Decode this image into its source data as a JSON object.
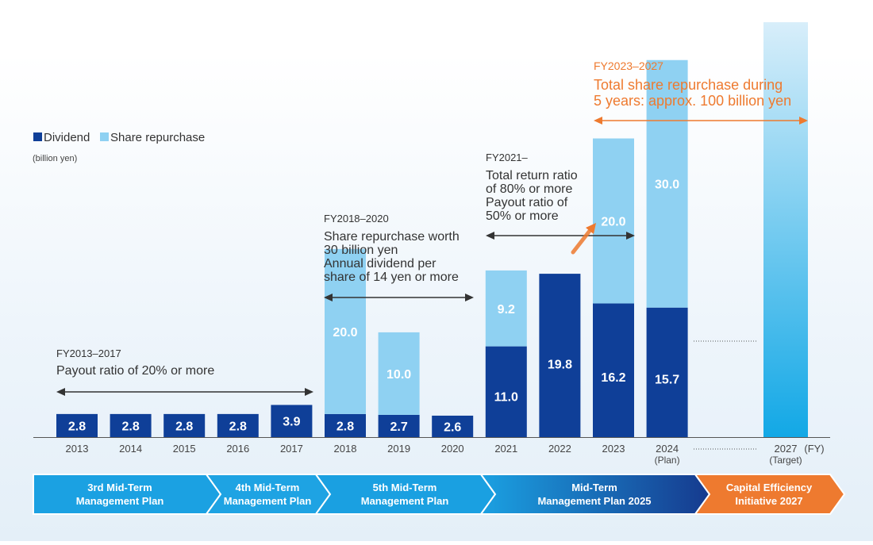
{
  "colors": {
    "dividend": "#0f3f98",
    "repurchase": "#8fd1f2",
    "target_top": "#d8eefa",
    "target_bottom": "#12a8e6",
    "annotation_dark": "#333333",
    "annotation_orange": "#ee7a2f",
    "plan_blue_light": "#1ba1e2",
    "plan_blue_dark": "#163a8e",
    "plan_orange": "#ee7a2f"
  },
  "legend": {
    "dividend": "Dividend",
    "repurchase": "Share repurchase",
    "unit": "(billion yen)"
  },
  "fy_unit": "(FY)",
  "chart_data": {
    "type": "bar",
    "stacked": true,
    "categories": [
      "2013",
      "2014",
      "2015",
      "2016",
      "2017",
      "2018",
      "2019",
      "2020",
      "2021",
      "2022",
      "2023",
      "2024",
      "2027"
    ],
    "category_sublabels": [
      "",
      "",
      "",
      "",
      "",
      "",
      "",
      "",
      "",
      "",
      "",
      "(Plan)",
      "(Target)"
    ],
    "series": [
      {
        "name": "Dividend",
        "values": [
          2.8,
          2.8,
          2.8,
          2.8,
          3.9,
          2.8,
          2.7,
          2.6,
          11.0,
          19.8,
          16.2,
          15.7,
          null
        ]
      },
      {
        "name": "Share repurchase",
        "values": [
          null,
          null,
          null,
          null,
          null,
          20.0,
          10.0,
          null,
          9.2,
          null,
          20.0,
          30.0,
          null
        ]
      }
    ],
    "value_labels": {
      "Dividend": [
        "2.8",
        "2.8",
        "2.8",
        "2.8",
        "3.9",
        "2.8",
        "2.7",
        "2.6",
        "11.0",
        "19.8",
        "16.2",
        "15.7",
        ""
      ],
      "Share repurchase": [
        "",
        "",
        "",
        "",
        "",
        "20.0",
        "10.0",
        "",
        "9.2",
        "",
        "20.0",
        "30.0",
        ""
      ]
    },
    "xlabel": "",
    "ylabel": "",
    "ylim": [
      0,
      46
    ],
    "grid": false,
    "legend_position": "top-left"
  },
  "annotations": [
    {
      "id": "fy2013",
      "heading": "FY2013–2017",
      "lines": [
        "Payout ratio of 20% or more"
      ]
    },
    {
      "id": "fy2018",
      "heading": "FY2018–2020",
      "lines": [
        "Share repurchase worth",
        "30 billion yen",
        "Annual dividend per",
        "share of 14 yen or more"
      ]
    },
    {
      "id": "fy2021",
      "heading": "FY2021–",
      "lines": [
        "Total return ratio",
        "of 80% or more",
        "Payout ratio of",
        "50% or more"
      ]
    },
    {
      "id": "fy2023",
      "heading": "FY2023–2027",
      "lines": [
        "Total share repurchase during",
        "5 years: approx. 100 billion yen"
      ]
    }
  ],
  "plans": [
    {
      "lines": [
        "3rd Mid-Term",
        "Management Plan"
      ]
    },
    {
      "lines": [
        "4th Mid-Term",
        "Management Plan"
      ]
    },
    {
      "lines": [
        "5th Mid-Term",
        "Management Plan"
      ]
    },
    {
      "lines": [
        "Mid-Term",
        "Management Plan 2025"
      ]
    },
    {
      "lines": [
        "Capital Efficiency",
        "Initiative 2027"
      ]
    }
  ]
}
